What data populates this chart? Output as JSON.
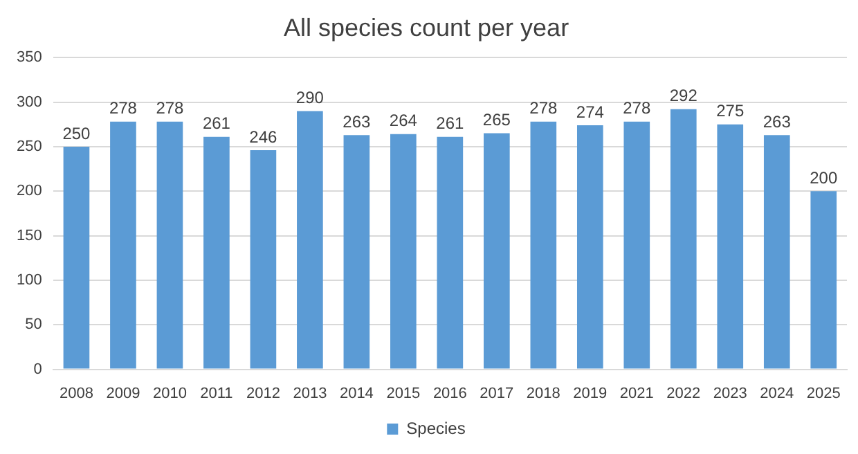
{
  "chart_data": {
    "type": "bar",
    "title": "All species count per year",
    "categories": [
      "2008",
      "2009",
      "2010",
      "2011",
      "2012",
      "2013",
      "2014",
      "2015",
      "2016",
      "2017",
      "2018",
      "2019",
      "2021",
      "2022",
      "2023",
      "2024",
      "2025"
    ],
    "series": [
      {
        "name": "Species",
        "color": "#5b9bd5",
        "values": [
          250,
          278,
          278,
          261,
          246,
          290,
          263,
          264,
          261,
          265,
          278,
          274,
          278,
          292,
          275,
          263,
          200
        ]
      }
    ],
    "ylim": [
      0,
      350
    ],
    "yticks": [
      0,
      50,
      100,
      150,
      200,
      250,
      300,
      350
    ],
    "grid": "y",
    "legend": "bottom",
    "data_labels": true
  }
}
